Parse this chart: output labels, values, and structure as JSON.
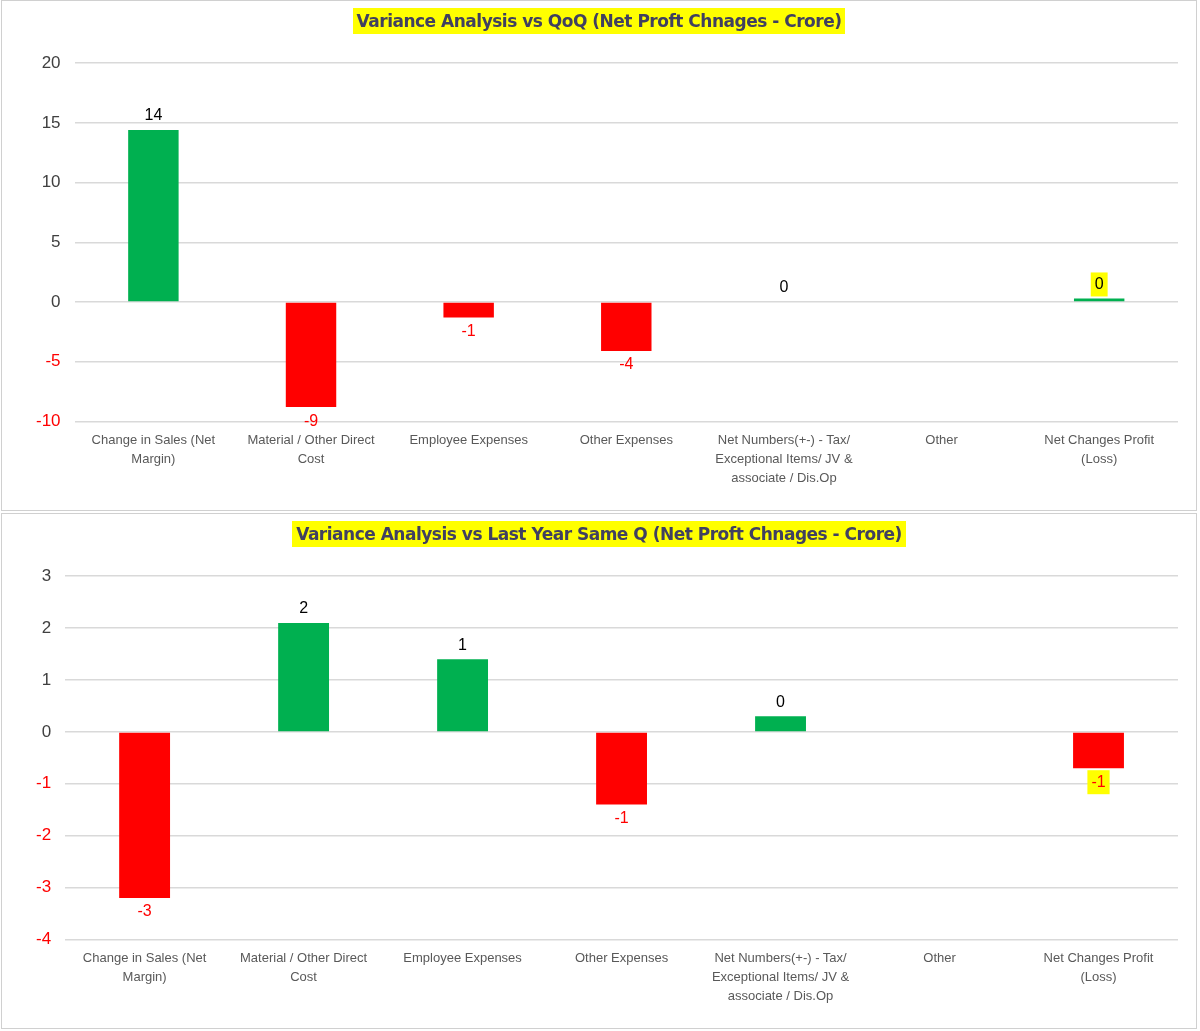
{
  "chart_data": [
    {
      "type": "bar",
      "title": "Variance Analysis vs QoQ (Net Proft Chnages - Crore)",
      "categories": [
        "Change in Sales (Net Margin)",
        "Material / Other Direct Cost",
        "Employee Expenses",
        "Other Expenses",
        "Net Numbers(+-) - Tax/ Exceptional Items/ JV & associate / Dis.Op",
        "Other",
        "Net Changes Profit (Loss)"
      ],
      "values": [
        14.4,
        -8.8,
        -1.3,
        -4.1,
        0,
        null,
        0.3
      ],
      "colors": [
        "#00b050",
        "#ff0000",
        "#ff0000",
        "#ff0000",
        "#00b050",
        "#00b050",
        "#00b050"
      ],
      "value_labels": [
        "14",
        "-9",
        "-1",
        "-4",
        "0",
        null,
        "0"
      ],
      "ylim": [
        -10,
        20
      ],
      "yticks": [
        -10,
        -5,
        0,
        5,
        10,
        15,
        20
      ],
      "grid": "y"
    },
    {
      "type": "bar",
      "title": "Variance Analysis vs Last Year Same Q (Net Proft Chnages - Crore)",
      "categories": [
        "Change in Sales (Net Margin)",
        "Material / Other Direct Cost",
        "Employee Expenses",
        "Other Expenses",
        "Net Numbers(+-) - Tax/ Exceptional Items/ JV & associate / Dis.Op",
        "Other",
        "Net Changes Profit (Loss)"
      ],
      "values": [
        -3.2,
        2.1,
        1.4,
        -1.4,
        0.3,
        null,
        -0.7
      ],
      "colors": [
        "#ff0000",
        "#00b050",
        "#00b050",
        "#ff0000",
        "#00b050",
        "#00b050",
        "#ff0000"
      ],
      "value_labels": [
        "-3",
        "2",
        "1",
        "-1",
        "0",
        null,
        "-1"
      ],
      "ylim": [
        -4,
        3
      ],
      "yticks": [
        -4,
        -3,
        -2,
        -1,
        0,
        1,
        2,
        3
      ],
      "grid": "y"
    }
  ]
}
